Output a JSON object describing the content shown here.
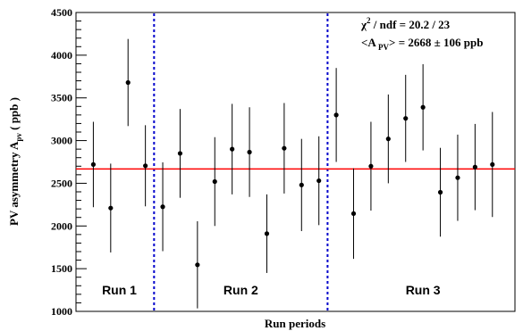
{
  "chart_data": {
    "type": "scatter",
    "xlabel": "Run periods",
    "ylabel": "PV asymmetry A",
    "ylabel_sub": "pv",
    "ylabel_unit": " ( ppb )",
    "ylim": [
      1000,
      4500
    ],
    "yticks": [
      1000,
      1500,
      2000,
      2500,
      3000,
      3500,
      4000,
      4500
    ],
    "grid": false,
    "fit_value": 2668,
    "fit_color": "#ff0000",
    "divider_color": "#0000cc",
    "run_dividers": [
      4.5,
      14.5
    ],
    "run_labels": [
      {
        "text": "Run 1",
        "x": 2.5
      },
      {
        "text": "Run 2",
        "x": 9.5
      },
      {
        "text": "Run 3",
        "x": 20
      }
    ],
    "annotation": {
      "line1_prefix": "χ",
      "line1_sup": "2",
      "line1_rest": " / ndf = 20.2 / 23",
      "line2_prefix": "<A",
      "line2_sub": " PV",
      "line2_rest": "> = 2668 ± 106 ppb"
    },
    "points": [
      {
        "x": 1,
        "y": 2720,
        "err": 500
      },
      {
        "x": 2,
        "y": 2210,
        "err": 520
      },
      {
        "x": 3,
        "y": 3680,
        "err": 510
      },
      {
        "x": 4,
        "y": 2705,
        "err": 475
      },
      {
        "x": 5,
        "y": 2225,
        "err": 520
      },
      {
        "x": 6,
        "y": 2850,
        "err": 520
      },
      {
        "x": 7,
        "y": 1545,
        "err": 510
      },
      {
        "x": 8,
        "y": 2520,
        "err": 520
      },
      {
        "x": 9,
        "y": 2900,
        "err": 530
      },
      {
        "x": 10,
        "y": 2865,
        "err": 525
      },
      {
        "x": 11,
        "y": 1910,
        "err": 460
      },
      {
        "x": 12,
        "y": 2910,
        "err": 530
      },
      {
        "x": 13,
        "y": 2480,
        "err": 540
      },
      {
        "x": 14,
        "y": 2530,
        "err": 520
      },
      {
        "x": 15,
        "y": 3300,
        "err": 550
      },
      {
        "x": 16,
        "y": 2145,
        "err": 530
      },
      {
        "x": 17,
        "y": 2700,
        "err": 520
      },
      {
        "x": 18,
        "y": 3020,
        "err": 520
      },
      {
        "x": 19,
        "y": 3260,
        "err": 510
      },
      {
        "x": 20,
        "y": 3390,
        "err": 505
      },
      {
        "x": 21,
        "y": 2395,
        "err": 520
      },
      {
        "x": 22,
        "y": 2565,
        "err": 505
      },
      {
        "x": 23,
        "y": 2690,
        "err": 505
      },
      {
        "x": 24,
        "y": 2720,
        "err": 615
      }
    ]
  }
}
